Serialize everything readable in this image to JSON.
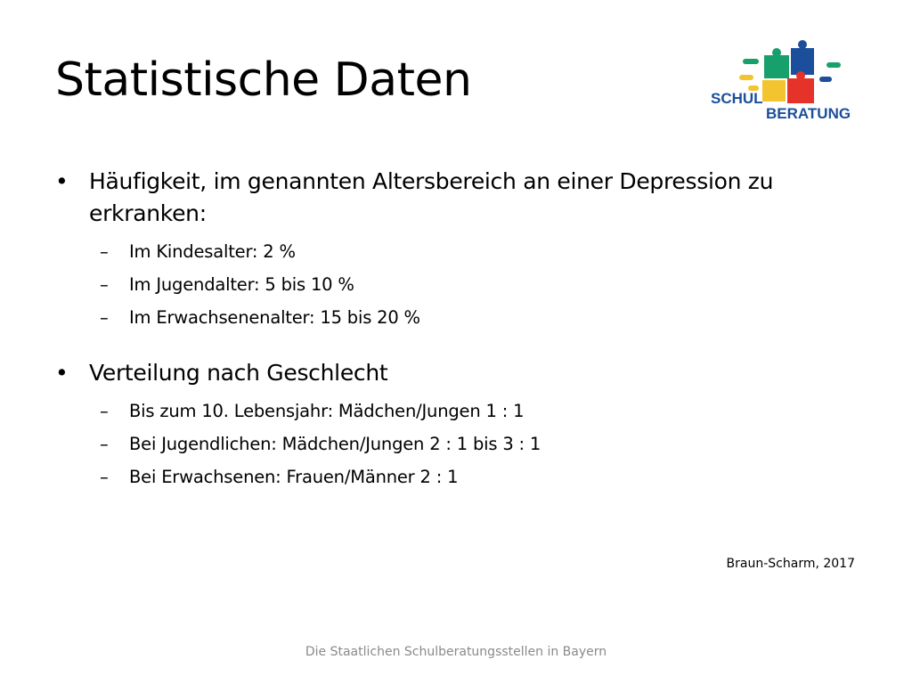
{
  "slide": {
    "title": "Statistische Daten",
    "logo": {
      "text_line1": "SCHUL",
      "text_line2": "BERATUNG",
      "colors": {
        "text": "#1b4f9c",
        "green": "#17a06b",
        "blue": "#1b4f9c",
        "yellow": "#f4c430",
        "red": "#e63329"
      }
    },
    "bullets": [
      {
        "text": "Häufigkeit, im genannten Altersbereich an einer Depression zu erkranken:",
        "subitems": [
          "Im Kindesalter: 2 %",
          "Im Jugendalter: 5 bis 10 %",
          "Im Erwachsenenalter: 15 bis 20 %"
        ]
      },
      {
        "text": "Verteilung nach Geschlecht",
        "subitems": [
          "Bis zum 10. Lebensjahr: Mädchen/Jungen 1 : 1",
          "Bei Jugendlichen: Mädchen/Jungen 2 : 1 bis 3 : 1",
          "Bei Erwachsenen: Frauen/Männer 2 : 1"
        ]
      }
    ],
    "citation": "Braun-Scharm, 2017",
    "footer": "Die Staatlichen Schulberatungsstellen in Bayern"
  }
}
